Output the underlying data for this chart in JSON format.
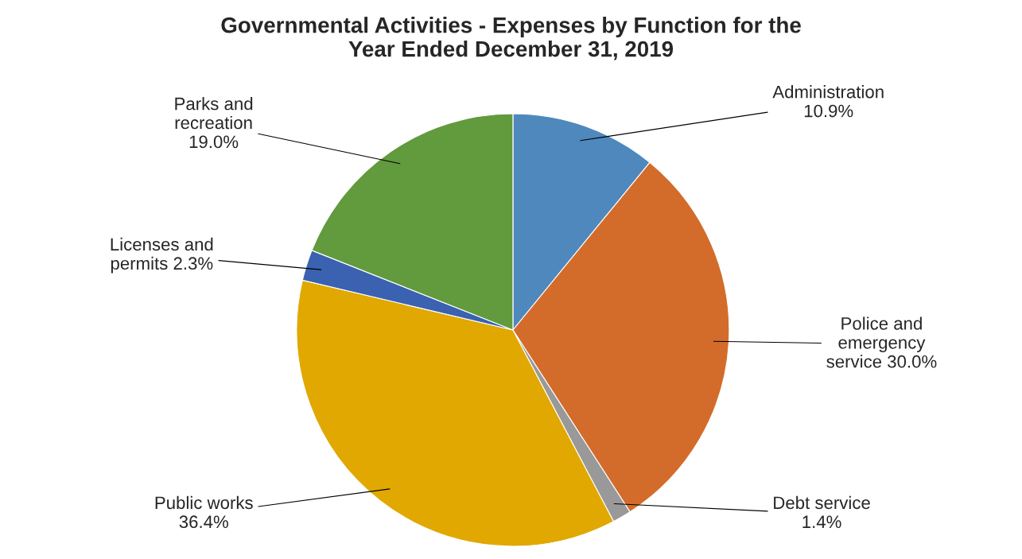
{
  "chart_data": {
    "type": "pie",
    "title": "Governmental Activities - Expenses by Function for the\nYear Ended December 31, 2019",
    "categories": [
      "Administration",
      "Police and\nemergency\nservice",
      "Debt service",
      "Public works",
      "Licenses and\npermits",
      "Parks and\nrecreation\n"
    ],
    "values": [
      10.9,
      30.0,
      1.4,
      36.4,
      2.3,
      19.0
    ],
    "value_labels": [
      "10.9%",
      "30.0%",
      "1.4%",
      "36.4%",
      "2.3%",
      "19.0%"
    ],
    "colors": [
      "#4f88bc",
      "#d36c2a",
      "#999999",
      "#e0a800",
      "#3a62b0",
      "#629a3e"
    ]
  }
}
